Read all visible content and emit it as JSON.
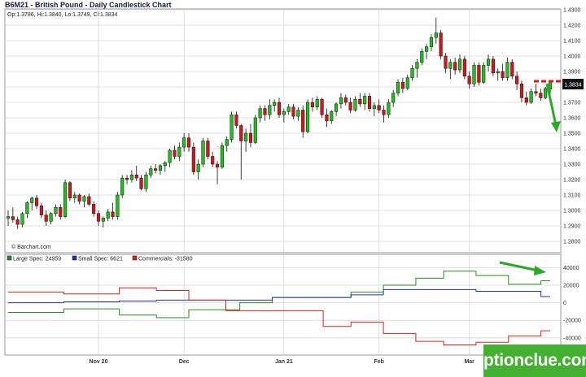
{
  "header": {
    "title": "B6M21 - British Pound - Daily Candlestick Chart",
    "ohlc": "Op:1.3786, Hi:1.3840, Lo:1.3749, Cl:1.3834",
    "credit": "© Barchart.com",
    "last_price": "1.3834"
  },
  "watermark": "optionclue.com",
  "colors": {
    "up": "#21c01e",
    "down": "#d4151c",
    "large_spec": "#2a8a2a",
    "small_spec": "#2233aa",
    "commercials": "#e02020",
    "arrow": "#2aa82a"
  },
  "chart_data": [
    {
      "type": "candlestick",
      "title": "B6M21 - British Pound - Daily Candlestick Chart",
      "ylim": [
        1.28,
        1.43
      ],
      "yticks": [
        "1.4300",
        "1.4200",
        "1.4100",
        "1.4000",
        "1.3900",
        "1.3800",
        "1.3700",
        "1.3600",
        "1.3500",
        "1.3400",
        "1.3300",
        "1.3200",
        "1.3100",
        "1.3000",
        "1.2900",
        "1.2800"
      ],
      "x_labels": [
        {
          "label": "Nov 20",
          "index": 19
        },
        {
          "label": "Dec",
          "index": 37
        },
        {
          "label": "Jan 21",
          "index": 58
        },
        {
          "label": "Feb",
          "index": 78
        },
        {
          "label": "Mar",
          "index": 97
        }
      ],
      "candles": [
        [
          1.295,
          1.3,
          1.29,
          1.296
        ],
        [
          1.296,
          1.302,
          1.292,
          1.294
        ],
        [
          1.294,
          1.296,
          1.288,
          1.291
        ],
        [
          1.291,
          1.299,
          1.289,
          1.298
        ],
        [
          1.298,
          1.306,
          1.295,
          1.305
        ],
        [
          1.305,
          1.309,
          1.3,
          1.308
        ],
        [
          1.308,
          1.31,
          1.301,
          1.303
        ],
        [
          1.303,
          1.305,
          1.295,
          1.297
        ],
        [
          1.297,
          1.3,
          1.29,
          1.293
        ],
        [
          1.293,
          1.299,
          1.291,
          1.298
        ],
        [
          1.298,
          1.304,
          1.296,
          1.302
        ],
        [
          1.302,
          1.304,
          1.294,
          1.296
        ],
        [
          1.296,
          1.32,
          1.295,
          1.318
        ],
        [
          1.318,
          1.319,
          1.306,
          1.308
        ],
        [
          1.308,
          1.312,
          1.305,
          1.31
        ],
        [
          1.31,
          1.311,
          1.304,
          1.306
        ],
        [
          1.306,
          1.31,
          1.302,
          1.309
        ],
        [
          1.309,
          1.311,
          1.303,
          1.304
        ],
        [
          1.304,
          1.306,
          1.296,
          1.298
        ],
        [
          1.298,
          1.3,
          1.29,
          1.293
        ],
        [
          1.293,
          1.296,
          1.289,
          1.295
        ],
        [
          1.295,
          1.301,
          1.293,
          1.299
        ],
        [
          1.299,
          1.305,
          1.294,
          1.296
        ],
        [
          1.296,
          1.312,
          1.294,
          1.31
        ],
        [
          1.31,
          1.323,
          1.308,
          1.321
        ],
        [
          1.321,
          1.323,
          1.317,
          1.32
        ],
        [
          1.32,
          1.326,
          1.318,
          1.323
        ],
        [
          1.323,
          1.329,
          1.319,
          1.321
        ],
        [
          1.321,
          1.323,
          1.313,
          1.314
        ],
        [
          1.314,
          1.325,
          1.312,
          1.323
        ],
        [
          1.323,
          1.329,
          1.321,
          1.327
        ],
        [
          1.327,
          1.33,
          1.324,
          1.326
        ],
        [
          1.326,
          1.33,
          1.323,
          1.329
        ],
        [
          1.329,
          1.332,
          1.325,
          1.331
        ],
        [
          1.331,
          1.34,
          1.328,
          1.339
        ],
        [
          1.339,
          1.342,
          1.333,
          1.335
        ],
        [
          1.335,
          1.344,
          1.332,
          1.341
        ],
        [
          1.341,
          1.35,
          1.338,
          1.347
        ],
        [
          1.347,
          1.35,
          1.338,
          1.341
        ],
        [
          1.341,
          1.344,
          1.323,
          1.325
        ],
        [
          1.325,
          1.333,
          1.32,
          1.33
        ],
        [
          1.33,
          1.347,
          1.328,
          1.345
        ],
        [
          1.345,
          1.347,
          1.333,
          1.335
        ],
        [
          1.335,
          1.338,
          1.328,
          1.33
        ],
        [
          1.33,
          1.332,
          1.317,
          1.328
        ],
        [
          1.328,
          1.344,
          1.327,
          1.342
        ],
        [
          1.342,
          1.348,
          1.338,
          1.346
        ],
        [
          1.346,
          1.364,
          1.344,
          1.362
        ],
        [
          1.362,
          1.364,
          1.353,
          1.355
        ],
        [
          1.355,
          1.356,
          1.32,
          1.345
        ],
        [
          1.345,
          1.353,
          1.338,
          1.35
        ],
        [
          1.35,
          1.356,
          1.341,
          1.344
        ],
        [
          1.344,
          1.362,
          1.343,
          1.36
        ],
        [
          1.36,
          1.368,
          1.357,
          1.366
        ],
        [
          1.366,
          1.368,
          1.358,
          1.362
        ],
        [
          1.362,
          1.372,
          1.359,
          1.368
        ],
        [
          1.368,
          1.372,
          1.364,
          1.37
        ],
        [
          1.37,
          1.373,
          1.36,
          1.362
        ],
        [
          1.362,
          1.366,
          1.357,
          1.364
        ],
        [
          1.364,
          1.369,
          1.362,
          1.367
        ],
        [
          1.367,
          1.369,
          1.359,
          1.361
        ],
        [
          1.361,
          1.367,
          1.358,
          1.365
        ],
        [
          1.365,
          1.368,
          1.347,
          1.351
        ],
        [
          1.351,
          1.372,
          1.35,
          1.37
        ],
        [
          1.37,
          1.373,
          1.364,
          1.367
        ],
        [
          1.367,
          1.374,
          1.365,
          1.372
        ],
        [
          1.372,
          1.373,
          1.36,
          1.362
        ],
        [
          1.362,
          1.366,
          1.354,
          1.358
        ],
        [
          1.358,
          1.365,
          1.356,
          1.364
        ],
        [
          1.364,
          1.37,
          1.361,
          1.369
        ],
        [
          1.369,
          1.376,
          1.366,
          1.373
        ],
        [
          1.373,
          1.375,
          1.368,
          1.37
        ],
        [
          1.37,
          1.373,
          1.363,
          1.365
        ],
        [
          1.365,
          1.374,
          1.364,
          1.372
        ],
        [
          1.372,
          1.376,
          1.367,
          1.369
        ],
        [
          1.369,
          1.376,
          1.365,
          1.374
        ],
        [
          1.374,
          1.376,
          1.364,
          1.366
        ],
        [
          1.366,
          1.37,
          1.361,
          1.368
        ],
        [
          1.368,
          1.372,
          1.363,
          1.365
        ],
        [
          1.365,
          1.368,
          1.357,
          1.362
        ],
        [
          1.362,
          1.372,
          1.36,
          1.37
        ],
        [
          1.37,
          1.378,
          1.367,
          1.376
        ],
        [
          1.376,
          1.385,
          1.374,
          1.383
        ],
        [
          1.383,
          1.386,
          1.376,
          1.379
        ],
        [
          1.379,
          1.388,
          1.378,
          1.386
        ],
        [
          1.386,
          1.394,
          1.384,
          1.392
        ],
        [
          1.392,
          1.398,
          1.386,
          1.396
        ],
        [
          1.396,
          1.405,
          1.394,
          1.403
        ],
        [
          1.403,
          1.408,
          1.398,
          1.406
        ],
        [
          1.406,
          1.414,
          1.403,
          1.412
        ],
        [
          1.412,
          1.425,
          1.408,
          1.415
        ],
        [
          1.415,
          1.417,
          1.398,
          1.4
        ],
        [
          1.4,
          1.402,
          1.389,
          1.392
        ],
        [
          1.392,
          1.398,
          1.385,
          1.396
        ],
        [
          1.396,
          1.399,
          1.388,
          1.391
        ],
        [
          1.391,
          1.401,
          1.389,
          1.398
        ],
        [
          1.398,
          1.4,
          1.385,
          1.387
        ],
        [
          1.387,
          1.39,
          1.379,
          1.382
        ],
        [
          1.382,
          1.396,
          1.38,
          1.394
        ],
        [
          1.394,
          1.396,
          1.381,
          1.383
        ],
        [
          1.383,
          1.396,
          1.382,
          1.394
        ],
        [
          1.394,
          1.401,
          1.39,
          1.398
        ],
        [
          1.398,
          1.4,
          1.387,
          1.389
        ],
        [
          1.389,
          1.392,
          1.384,
          1.39
        ],
        [
          1.39,
          1.395,
          1.384,
          1.386
        ],
        [
          1.386,
          1.399,
          1.384,
          1.396
        ],
        [
          1.396,
          1.398,
          1.385,
          1.387
        ],
        [
          1.387,
          1.39,
          1.378,
          1.382
        ],
        [
          1.382,
          1.384,
          1.37,
          1.373
        ],
        [
          1.373,
          1.377,
          1.368,
          1.37
        ],
        [
          1.37,
          1.379,
          1.369,
          1.377
        ],
        [
          1.377,
          1.382,
          1.374,
          1.376
        ],
        [
          1.376,
          1.379,
          1.371,
          1.373
        ],
        [
          1.373,
          1.38,
          1.372,
          1.379
        ],
        [
          1.3786,
          1.384,
          1.3749,
          1.3834
        ]
      ]
    },
    {
      "type": "line",
      "step": true,
      "ylim": [
        -55000,
        45000
      ],
      "yticks": [
        40000,
        20000,
        0,
        -20000,
        -40000
      ],
      "series": [
        {
          "name": "Large Spec: 24959",
          "values": [
            -11000,
            -11000,
            -11000,
            -11000,
            -11000,
            -11000,
            -11000,
            -11000,
            -11000,
            -11000,
            -11000,
            -11000,
            -7000,
            -7000,
            -7000,
            -7000,
            -7000,
            -7000,
            -7000,
            -7000,
            -7000,
            -7000,
            -7000,
            -7000,
            -14000,
            -14000,
            -14000,
            -14000,
            -14000,
            -14000,
            -14000,
            -14000,
            -17000,
            -17000,
            -17000,
            -17000,
            -17000,
            -17000,
            -17000,
            -8000,
            -8000,
            -8000,
            -8000,
            -8000,
            -8000,
            -8000,
            -8000,
            -8000,
            -8000,
            -8000,
            0,
            0,
            0,
            0,
            0,
            0,
            0,
            6000,
            6000,
            6000,
            6000,
            6000,
            6000,
            6000,
            6000,
            6000,
            6000,
            6000,
            6000,
            6000,
            6000,
            6000,
            6000,
            6000,
            12000,
            12000,
            12000,
            12000,
            12000,
            12000,
            12000,
            20000,
            20000,
            20000,
            20000,
            20000,
            20000,
            20000,
            28000,
            28000,
            28000,
            28000,
            28000,
            28000,
            36000,
            36000,
            36000,
            36000,
            36000,
            36000,
            36000,
            31000,
            31000,
            31000,
            31000,
            31000,
            31000,
            31000,
            21000,
            21000,
            21000,
            21000,
            21000,
            21000,
            21000,
            25000,
            25000,
            25000
          ]
        },
        {
          "name": "Small Spec: 6621",
          "values": [
            0,
            0,
            0,
            0,
            0,
            0,
            0,
            0,
            0,
            0,
            0,
            0,
            1000,
            1000,
            1000,
            1000,
            1000,
            1000,
            1000,
            1000,
            1000,
            1000,
            1000,
            1000,
            2000,
            2000,
            2000,
            2000,
            2000,
            2000,
            2000,
            2000,
            3000,
            3000,
            3000,
            3000,
            3000,
            3000,
            3000,
            3000,
            3000,
            3000,
            3000,
            3000,
            3000,
            3000,
            3000,
            3000,
            3000,
            3000,
            3000,
            3000,
            3000,
            3000,
            3000,
            3000,
            3000,
            6000,
            6000,
            6000,
            6000,
            6000,
            6000,
            6000,
            6000,
            6000,
            6000,
            6000,
            6000,
            6000,
            6000,
            6000,
            6000,
            6000,
            9000,
            9000,
            9000,
            9000,
            9000,
            9000,
            9000,
            15000,
            15000,
            15000,
            15000,
            15000,
            15000,
            15000,
            15000,
            15000,
            15000,
            15000,
            15000,
            15000,
            15000,
            15000,
            15000,
            15000,
            15000,
            15000,
            15000,
            13000,
            13000,
            13000,
            13000,
            13000,
            13000,
            13000,
            13000,
            13000,
            13000,
            13000,
            13000,
            13000,
            13000,
            7000,
            7000,
            7000
          ]
        },
        {
          "name": "Commercials: -31580",
          "values": [
            12000,
            12000,
            12000,
            12000,
            12000,
            12000,
            12000,
            12000,
            12000,
            12000,
            12000,
            12000,
            10000,
            10000,
            10000,
            10000,
            10000,
            10000,
            10000,
            10000,
            10000,
            10000,
            10000,
            10000,
            17000,
            17000,
            17000,
            17000,
            17000,
            17000,
            17000,
            17000,
            14000,
            14000,
            14000,
            14000,
            14000,
            14000,
            14000,
            3000,
            3000,
            3000,
            3000,
            3000,
            3000,
            3000,
            3000,
            -9000,
            -9000,
            -9000,
            -9000,
            -9000,
            -9000,
            -9000,
            -9000,
            -9000,
            -9000,
            -9000,
            -9000,
            -9000,
            -9000,
            -9000,
            -9000,
            -9000,
            -9000,
            -9000,
            -9000,
            -9000,
            -27000,
            -27000,
            -27000,
            -27000,
            -27000,
            -27000,
            -22000,
            -22000,
            -22000,
            -22000,
            -22000,
            -22000,
            -22000,
            -35000,
            -35000,
            -35000,
            -35000,
            -35000,
            -35000,
            -35000,
            -44000,
            -44000,
            -44000,
            -44000,
            -44000,
            -44000,
            -48000,
            -48000,
            -48000,
            -48000,
            -48000,
            -48000,
            -48000,
            -45000,
            -45000,
            -45000,
            -45000,
            -45000,
            -45000,
            -45000,
            -38000,
            -38000,
            -38000,
            -38000,
            -38000,
            -38000,
            -38000,
            -32000,
            -32000,
            -32000
          ]
        }
      ]
    }
  ]
}
